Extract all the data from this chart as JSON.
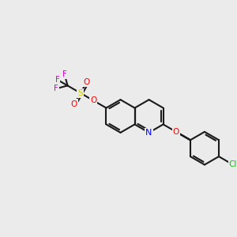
{
  "background_color": "#ebebeb",
  "bond_color": "#1a1a1a",
  "bond_lw": 1.5,
  "atom_colors": {
    "N": "#0000ff",
    "O": "#ff0000",
    "S": "#cccc00",
    "F": "#cc00cc",
    "Cl": "#00cc00",
    "C": "#1a1a1a"
  },
  "font_size": 7.5
}
